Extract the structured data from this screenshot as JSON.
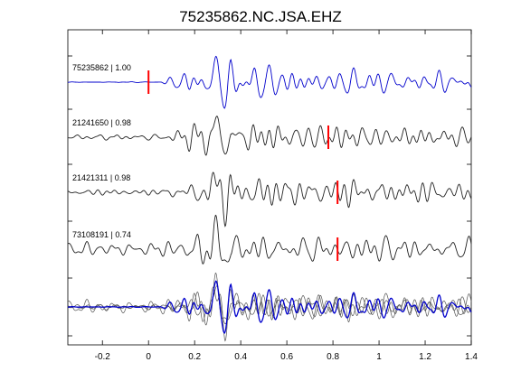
{
  "chart_data": {
    "type": "line",
    "title": "75235862.NC.JSA.EHZ",
    "xlabel": "",
    "ylabel": "",
    "xlim": [
      -0.35,
      1.4
    ],
    "xticks": [
      -0.2,
      0,
      0.2,
      0.4,
      0.6,
      0.8,
      1,
      1.2,
      1.4
    ],
    "xtick_labels": [
      "-0.2",
      "0",
      "0.2",
      "0.4",
      "0.6",
      "0.8",
      "1",
      "1.2",
      "1.4"
    ],
    "grid": false,
    "traces": [
      {
        "label": "75235862 | 1.00",
        "color": "#0000cc",
        "pick_time": 0.0,
        "pick_color": "#ff0000"
      },
      {
        "label": "21241650 | 0.98",
        "color": "#222222",
        "pick_time": 0.78,
        "pick_color": "#ff0000"
      },
      {
        "label": "21421311 | 0.98",
        "color": "#222222",
        "pick_time": 0.82,
        "pick_color": "#ff0000"
      },
      {
        "label": "73108191 | 0.74",
        "color": "#222222",
        "pick_time": 0.82,
        "pick_color": "#ff0000"
      }
    ],
    "overlay": {
      "label": "",
      "colors": [
        "#0000cc",
        "#555555"
      ]
    },
    "onset_time": 0.05
  }
}
